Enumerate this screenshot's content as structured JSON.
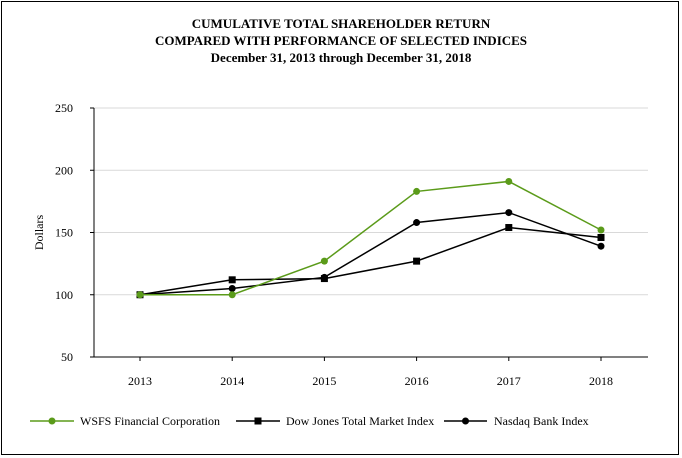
{
  "chart_data": {
    "type": "line",
    "title": "CUMULATIVE TOTAL SHAREHOLDER RETURN",
    "subtitle": "COMPARED WITH PERFORMANCE OF SELECTED INDICES",
    "subtitle2": "December 31, 2013 through December 31, 2018",
    "xlabel": "",
    "ylabel": "Dollars",
    "categories": [
      "2013",
      "2014",
      "2015",
      "2016",
      "2017",
      "2018"
    ],
    "ylim": [
      50,
      250
    ],
    "yticks": [
      50,
      100,
      150,
      200,
      250
    ],
    "grid": "horizontal",
    "legend_position": "bottom",
    "series": [
      {
        "name": "WSFS Financial Corporation",
        "values": [
          100,
          100,
          127,
          183,
          191,
          152
        ],
        "color": "#5b9b1a",
        "marker": "circle"
      },
      {
        "name": "Dow Jones Total Market Index",
        "values": [
          100,
          112,
          113,
          127,
          154,
          146
        ],
        "color": "#000000",
        "marker": "square"
      },
      {
        "name": "Nasdaq Bank Index",
        "values": [
          100,
          105,
          114,
          158,
          166,
          139
        ],
        "color": "#000000",
        "marker": "circle"
      }
    ]
  }
}
